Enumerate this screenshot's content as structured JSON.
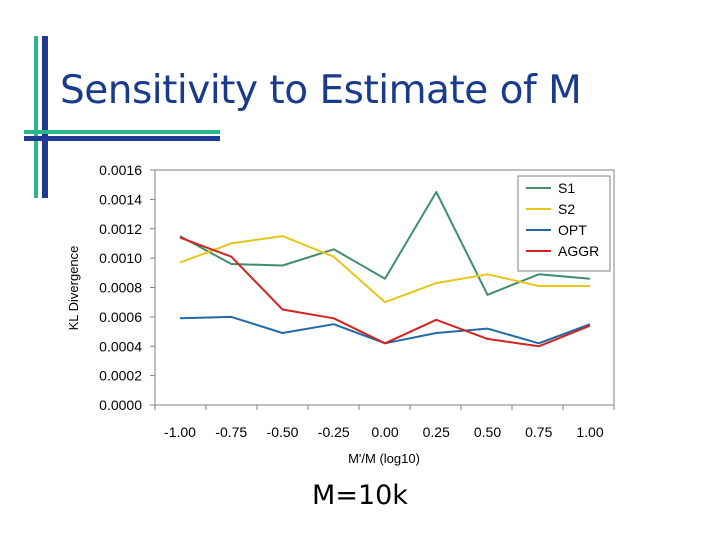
{
  "slide": {
    "title": "Sensitivity to Estimate of M",
    "caption": "M=10k"
  },
  "colors": {
    "title": "#1a3a8c",
    "accent_blue": "#1f3a93",
    "accent_green": "#2fb58a"
  },
  "chart_data": {
    "type": "line",
    "xlabel": "M'/M (log10)",
    "ylabel": "KL Divergence",
    "x": [
      -1.0,
      -0.75,
      -0.5,
      -0.25,
      0.0,
      0.25,
      0.5,
      0.75,
      1.0
    ],
    "x_tick_labels": [
      "-1.00",
      "-0.75",
      "-0.50",
      "-0.25",
      "0.00",
      "0.25",
      "0.50",
      "0.75",
      "1.00"
    ],
    "ylim": [
      0,
      0.0016
    ],
    "y_ticks": [
      0.0,
      0.0002,
      0.0004,
      0.0006,
      0.0008,
      0.001,
      0.0012,
      0.0014,
      0.0016
    ],
    "y_tick_labels": [
      "0.0000",
      "0.0002",
      "0.0004",
      "0.0006",
      "0.0008",
      "0.0010",
      "0.0012",
      "0.0014",
      "0.0016"
    ],
    "grid": false,
    "legend_position": "top-right",
    "series": [
      {
        "name": "S1",
        "color": "#3f8f6a",
        "values": [
          0.00115,
          0.00096,
          0.00095,
          0.00106,
          0.00086,
          0.00145,
          0.00075,
          0.00089,
          0.00086
        ]
      },
      {
        "name": "S2",
        "color": "#e6c619",
        "values": [
          0.00097,
          0.0011,
          0.00115,
          0.00101,
          0.0007,
          0.00083,
          0.00089,
          0.00081,
          0.00081
        ]
      },
      {
        "name": "OPT",
        "color": "#1f6aa6",
        "values": [
          0.00059,
          0.0006,
          0.00049,
          0.00055,
          0.00042,
          0.00049,
          0.00052,
          0.00042,
          0.00055
        ]
      },
      {
        "name": "AGGR",
        "color": "#d4231f",
        "values": [
          0.00114,
          0.00101,
          0.00065,
          0.00059,
          0.00042,
          0.00058,
          0.00045,
          0.0004,
          0.00054
        ]
      }
    ]
  }
}
